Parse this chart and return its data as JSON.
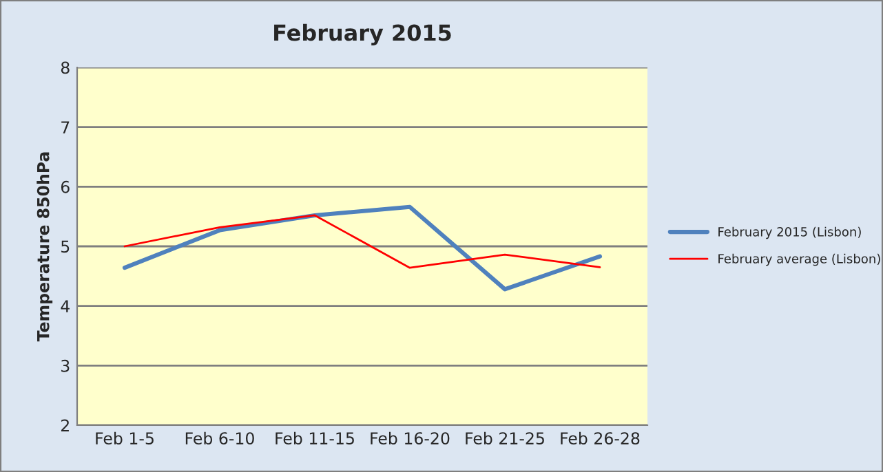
{
  "chart_data": {
    "type": "line",
    "title": "February 2015",
    "ylabel": "Temperature 850hPa",
    "categories": [
      "Feb 1-5",
      "Feb 6-10",
      "Feb 11-15",
      "Feb 16-20",
      "Feb 21-25",
      "Feb 26-28"
    ],
    "series": [
      {
        "name": "February 2015 (Lisbon)",
        "color": "#4f81bd",
        "values": [
          4.64,
          5.27,
          5.52,
          5.66,
          4.28,
          4.83
        ]
      },
      {
        "name": "February average (Lisbon)",
        "color": "#ff0000",
        "values": [
          5.0,
          5.32,
          5.52,
          4.64,
          4.86,
          4.65
        ]
      }
    ],
    "ylim": [
      2,
      8
    ],
    "yticks": [
      2,
      3,
      4,
      5,
      6,
      7,
      8
    ],
    "grid": "y",
    "legend": "right",
    "marker": "none",
    "line_style": "solid"
  }
}
